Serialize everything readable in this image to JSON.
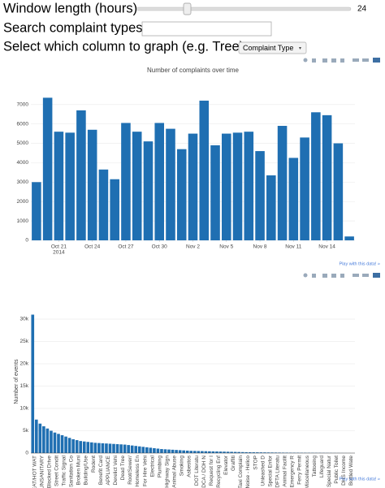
{
  "controls": {
    "window_label": "Window length (hours)",
    "window_value": "24",
    "search_label": "Search complaint types",
    "column_label": "Select which column to graph (e.g. Tree)",
    "column_value": "Complaint Type"
  },
  "chart_data": [
    {
      "type": "bar",
      "title": "Number of complaints over time",
      "color": "#1f6fb2",
      "grid": true,
      "x": [
        "2014-10-19",
        "2014-10-20",
        "2014-10-21",
        "2014-10-22",
        "2014-10-23",
        "2014-10-24",
        "2014-10-25",
        "2014-10-26",
        "2014-10-27",
        "2014-10-28",
        "2014-10-29",
        "2014-10-30",
        "2014-10-31",
        "2014-11-01",
        "2014-11-02",
        "2014-11-03",
        "2014-11-04",
        "2014-11-05",
        "2014-11-06",
        "2014-11-07",
        "2014-11-08",
        "2014-11-09",
        "2014-11-10",
        "2014-11-11",
        "2014-11-12",
        "2014-11-13",
        "2014-11-14",
        "2014-11-15",
        "2014-11-16"
      ],
      "values": [
        3000,
        7350,
        5600,
        5550,
        6700,
        5700,
        3650,
        3150,
        6050,
        5600,
        5100,
        6050,
        5750,
        4700,
        5500,
        7200,
        4900,
        5500,
        5550,
        5600,
        4600,
        3350,
        5900,
        4250,
        5300,
        6600,
        6450,
        5000,
        200
      ],
      "xticks": [
        {
          "value": "2014-10-21",
          "label": "Oct 21"
        },
        {
          "value": "2014-10-24",
          "label": "Oct 24"
        },
        {
          "value": "2014-10-27",
          "label": "Oct 27"
        },
        {
          "value": "2014-10-30",
          "label": "Oct 30"
        },
        {
          "value": "2014-11-02",
          "label": "Nov 2"
        },
        {
          "value": "2014-11-05",
          "label": "Nov 5"
        },
        {
          "value": "2014-11-08",
          "label": "Nov 8"
        },
        {
          "value": "2014-11-11",
          "label": "Nov 11"
        },
        {
          "value": "2014-11-14",
          "label": "Nov 14"
        }
      ],
      "x_year_label": "2014",
      "ylim": [
        0,
        7700
      ],
      "yticks": [
        0,
        1000,
        2000,
        3000,
        4000,
        5000,
        6000,
        7000
      ],
      "link": "Play with this data! »"
    },
    {
      "type": "bar",
      "y_label": "Number of events",
      "color": "#1f6fb2",
      "grid": true,
      "categories": [
        "HEAT/HOT WAT",
        null,
        "UNSANITARY",
        null,
        "Blocked Drive",
        null,
        "Street Condit",
        null,
        "Traffic Signal",
        null,
        "Sanitation Co",
        null,
        "Broken Muni",
        null,
        "Building/Use",
        null,
        "Rodent",
        null,
        "Benefit Card",
        null,
        "APPLIANCE",
        null,
        "Derelict Vehi",
        null,
        "Dead Tree",
        null,
        "Root/Sewer/",
        null,
        "Homeless En",
        null,
        "For Hire Vehi",
        null,
        "Electrical",
        null,
        "Plumbing",
        null,
        "Highway Sign",
        null,
        "Animal Abuse",
        null,
        "Smoking",
        null,
        "Asbestos",
        null,
        "DOT Literatu",
        null,
        "DCA / DOH N",
        null,
        "Request for I",
        null,
        "Recycling Enf",
        null,
        "Elevator",
        null,
        "Graffiti",
        null,
        "Taxi Complain",
        null,
        "Noise - Helico",
        null,
        "STOP",
        null,
        "Unleashed D",
        null,
        "Special Enfor",
        null,
        "DFTA Literatu",
        null,
        "Animal Facilit",
        null,
        "Emergency R",
        null,
        "Ferry Permit",
        null,
        "Miscellaneous",
        null,
        "Tattooing",
        null,
        "Lifeguard",
        null,
        "Special Natur",
        null,
        "Public Toilet",
        null,
        "DHS Income",
        null,
        "Bottled Wate",
        null
      ],
      "values": [
        31000,
        7500,
        6600,
        6000,
        5500,
        5000,
        4600,
        4300,
        4000,
        3700,
        3400,
        3100,
        2900,
        2700,
        2600,
        2500,
        2400,
        2300,
        2250,
        2200,
        2150,
        2100,
        2050,
        2000,
        1950,
        1900,
        1800,
        1700,
        1600,
        1500,
        1400,
        1300,
        1200,
        1100,
        1000,
        900,
        850,
        800,
        750,
        700,
        650,
        600,
        550,
        500,
        480,
        460,
        440,
        420,
        400,
        380,
        360,
        340,
        320,
        300,
        280,
        260,
        240,
        220,
        200,
        190,
        180,
        170,
        160,
        150,
        140,
        130,
        120,
        110,
        100,
        95,
        90,
        85,
        80,
        75,
        70,
        65,
        60,
        55,
        50,
        45,
        40,
        35,
        30,
        25,
        20,
        15,
        10,
        5
      ],
      "ylim": [
        0,
        32000
      ],
      "yticks": [
        0,
        {
          "value": 5000,
          "label": "5k"
        },
        {
          "value": 10000,
          "label": "10k"
        },
        {
          "value": 15000,
          "label": "15k"
        },
        {
          "value": 20000,
          "label": "20k"
        },
        {
          "value": 25000,
          "label": "25k"
        },
        {
          "value": 30000,
          "label": "30k"
        }
      ],
      "link": "Play with this data! »"
    }
  ]
}
